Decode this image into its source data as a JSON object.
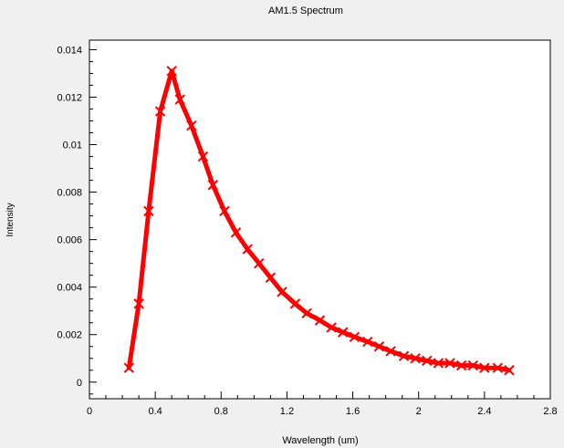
{
  "chart_data": {
    "type": "line",
    "title": "AM1.5 Spectrum",
    "xlabel": "Wavelength (um)",
    "ylabel": "Intensity",
    "xlim": [
      0,
      2.8
    ],
    "ylim": [
      -0.0007,
      0.0144
    ],
    "x_ticks": [
      0,
      0.4,
      0.8,
      1.2,
      1.6,
      2,
      2.4,
      2.8
    ],
    "x_tick_labels": [
      "0",
      "0.4",
      "0.8",
      "1.2",
      "1.6",
      "2",
      "2.4",
      "2.8"
    ],
    "y_ticks": [
      0,
      0.002,
      0.004,
      0.006,
      0.008,
      0.01,
      0.012,
      0.014
    ],
    "y_tick_labels": [
      "0",
      "0.002",
      "0.004",
      "0.006",
      "0.008",
      "0.01",
      "0.012",
      "0.014"
    ],
    "grid": false,
    "legend": "none",
    "series": [
      {
        "color": "#ff0000",
        "marker": "x",
        "x": [
          0.24,
          0.3,
          0.36,
          0.43,
          0.5,
          0.55,
          0.62,
          0.69,
          0.75,
          0.82,
          0.89,
          0.96,
          1.03,
          1.1,
          1.17,
          1.25,
          1.32,
          1.4,
          1.47,
          1.54,
          1.61,
          1.69,
          1.76,
          1.83,
          1.91,
          1.98,
          2.05,
          2.12,
          2.19,
          2.26,
          2.33,
          2.4,
          2.48,
          2.55
        ],
        "y": [
          0.0006,
          0.0033,
          0.0072,
          0.0114,
          0.0131,
          0.0119,
          0.0108,
          0.0095,
          0.0083,
          0.0072,
          0.0063,
          0.0056,
          0.005,
          0.0044,
          0.0038,
          0.0033,
          0.0029,
          0.0026,
          0.0023,
          0.0021,
          0.0019,
          0.0017,
          0.0015,
          0.0013,
          0.0011,
          0.001,
          0.0009,
          0.0008,
          0.0008,
          0.0007,
          0.0007,
          0.0006,
          0.0006,
          0.0005
        ]
      }
    ]
  }
}
